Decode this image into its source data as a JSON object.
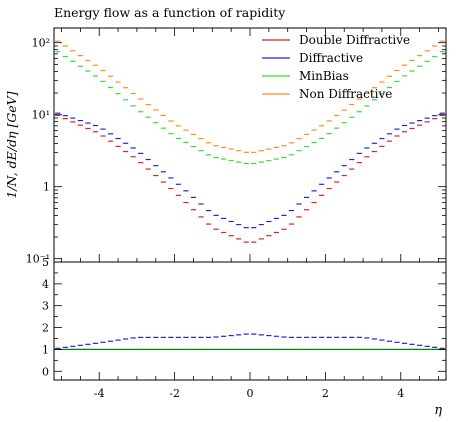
{
  "chart_data": [
    {
      "type": "line",
      "title": "Energy flow as a function of rapidity",
      "ylabel": "1/N, dE/dη [GeV]",
      "xlabel": "",
      "y_scale": "log",
      "ylim": [
        0.09,
        160
      ],
      "xlim": [
        -5.2,
        5.2
      ],
      "y_ticks": [
        {
          "value": 0.1,
          "label": "10⁻¹"
        },
        {
          "value": 1,
          "label": "1"
        },
        {
          "value": 10,
          "label": "10¹"
        },
        {
          "value": 100,
          "label": "10²"
        }
      ],
      "grid": false,
      "legend_position": "top-right",
      "series": [
        {
          "name": "Double Diffractive",
          "color": "#dd2222",
          "x_abs": [
            0.1,
            1.0,
            2.0,
            3.0,
            4.0,
            5.1
          ],
          "y": [
            0.17,
            0.27,
            0.85,
            2.4,
            5.5,
            9.8
          ]
        },
        {
          "name": "Diffractive",
          "color": "#2222dd",
          "x_abs": [
            0.1,
            1.0,
            2.0,
            3.0,
            4.0,
            5.1
          ],
          "y": [
            0.27,
            0.42,
            1.2,
            3.2,
            6.8,
            10.5
          ]
        },
        {
          "name": "MinBias",
          "color": "#33dd33",
          "x_abs": [
            0.1,
            1.0,
            2.0,
            3.0,
            4.0,
            5.1
          ],
          "y": [
            2.1,
            2.6,
            5.0,
            12,
            32,
            75
          ]
        },
        {
          "name": "Non Diffractive",
          "color": "#ff8c1a",
          "x_abs": [
            0.1,
            1.0,
            2.0,
            3.0,
            4.0,
            5.1
          ],
          "y": [
            3.0,
            3.8,
            7.5,
            18,
            45,
            105
          ]
        }
      ]
    },
    {
      "type": "line",
      "title": "",
      "xlabel": "η",
      "ylabel": "",
      "ylim": [
        -0.4,
        5
      ],
      "xlim": [
        -5.2,
        5.2
      ],
      "x_ticks": [
        -4,
        -2,
        0,
        2,
        4
      ],
      "y_ticks": [
        0,
        1,
        2,
        3,
        4,
        5
      ],
      "series": [
        {
          "color": "#2222dd",
          "x_abs": [
            0.1,
            1.0,
            2.0,
            3.0,
            4.0,
            5.1
          ],
          "y": [
            1.7,
            1.55,
            1.55,
            1.55,
            1.3,
            1.05
          ]
        },
        {
          "color": "#008800",
          "x_abs": [
            0.1,
            5.1
          ],
          "y": [
            1.0,
            1.0
          ]
        }
      ]
    }
  ]
}
